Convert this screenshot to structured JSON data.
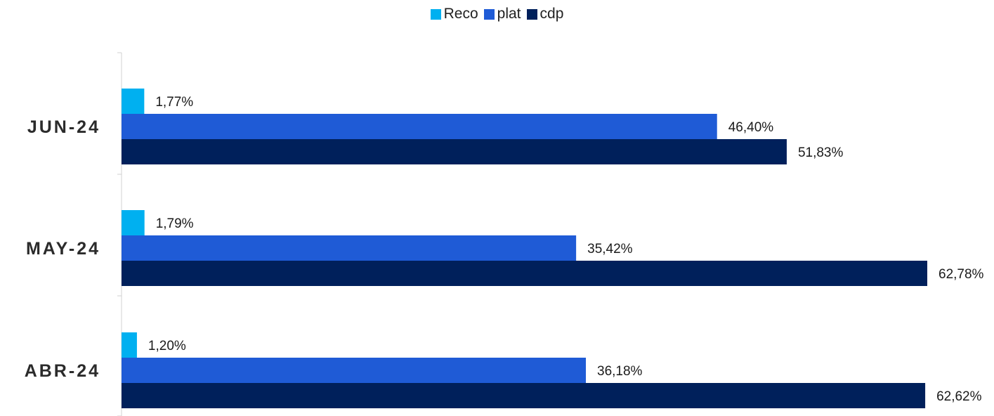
{
  "chart_data": {
    "type": "bar",
    "orientation": "horizontal",
    "categories": [
      "JUN-24",
      "MAY-24",
      "ABR-24"
    ],
    "series": [
      {
        "name": "Reco",
        "color": "#00b0f0",
        "values": [
          1.77,
          1.79,
          1.2
        ],
        "labels": [
          "1,77%",
          "1,79%",
          "1,20%"
        ]
      },
      {
        "name": "plat",
        "color": "#1f5bd6",
        "values": [
          46.4,
          35.42,
          36.18
        ],
        "labels": [
          "46,40%",
          "35,42%",
          "36,18%"
        ]
      },
      {
        "name": "cdp",
        "color": "#00205b",
        "values": [
          51.83,
          62.78,
          62.62
        ],
        "labels": [
          "51,83%",
          "62,78%",
          "62,62%"
        ]
      }
    ],
    "xlim": [
      0,
      62.78
    ],
    "legend_position": "top-center",
    "grid": false
  }
}
